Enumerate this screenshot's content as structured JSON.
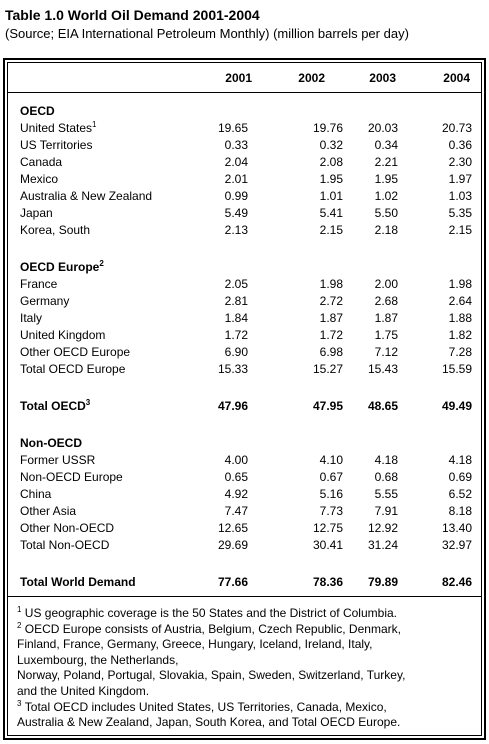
{
  "header": {
    "title": "Table 1.0 World Oil Demand 2001-2004",
    "subtitle": "(Source; EIA International Petroleum Monthly) (million barrels per day)"
  },
  "table": {
    "columns": [
      "2001",
      "2002",
      "2003",
      "2004"
    ],
    "groups": [
      {
        "heading": "OECD",
        "rows": [
          {
            "label": "United States",
            "note": "1",
            "values": [
              "19.65",
              "19.76",
              "20.03",
              "20.73"
            ]
          },
          {
            "label": "US Territories",
            "values": [
              "0.33",
              "0.32",
              "0.34",
              "0.36"
            ]
          },
          {
            "label": "Canada",
            "values": [
              "2.04",
              "2.08",
              "2.21",
              "2.30"
            ]
          },
          {
            "label": "Mexico",
            "values": [
              "2.01",
              "1.95",
              "1.95",
              "1.97"
            ]
          },
          {
            "label": "Australia & New Zealand",
            "values": [
              "0.99",
              "1.01",
              "1.02",
              "1.03"
            ]
          },
          {
            "label": "Japan",
            "values": [
              "5.49",
              "5.41",
              "5.50",
              "5.35"
            ]
          },
          {
            "label": "Korea, South",
            "values": [
              "2.13",
              "2.15",
              "2.18",
              "2.15"
            ]
          }
        ]
      },
      {
        "heading": "OECD Europe",
        "note": "2",
        "rows": [
          {
            "label": "France",
            "values": [
              "2.05",
              "1.98",
              "2.00",
              "1.98"
            ]
          },
          {
            "label": "Germany",
            "values": [
              "2.81",
              "2.72",
              "2.68",
              "2.64"
            ]
          },
          {
            "label": "Italy",
            "values": [
              "1.84",
              "1.87",
              "1.87",
              "1.88"
            ]
          },
          {
            "label": "United Kingdom",
            "values": [
              "1.72",
              "1.72",
              "1.75",
              "1.82"
            ]
          },
          {
            "label": "Other OECD Europe",
            "values": [
              "6.90",
              "6.98",
              "7.12",
              "7.28"
            ]
          },
          {
            "label": "Total OECD Europe",
            "values": [
              "15.33",
              "15.27",
              "15.43",
              "15.59"
            ]
          }
        ]
      },
      {
        "total": {
          "label": "Total OECD",
          "note": "3",
          "values": [
            "47.96",
            "47.95",
            "48.65",
            "49.49"
          ]
        }
      },
      {
        "heading": "Non-OECD",
        "rows": [
          {
            "label": "Former USSR",
            "values": [
              "4.00",
              "4.10",
              "4.18",
              "4.18"
            ]
          },
          {
            "label": "Non-OECD Europe",
            "values": [
              "0.65",
              "0.67",
              "0.68",
              "0.69"
            ]
          },
          {
            "label": "China",
            "values": [
              "4.92",
              "5.16",
              "5.55",
              "6.52"
            ]
          },
          {
            "label": "Other Asia",
            "values": [
              "7.47",
              "7.73",
              "7.91",
              "8.18"
            ]
          },
          {
            "label": "Other Non-OECD",
            "values": [
              "12.65",
              "12.75",
              "12.92",
              "13.40"
            ]
          },
          {
            "label": "Total Non-OECD",
            "values": [
              "29.69",
              "30.41",
              "31.24",
              "32.97"
            ]
          }
        ]
      },
      {
        "total": {
          "label": "Total World Demand",
          "values": [
            "77.66",
            "78.36",
            "79.89",
            "82.46"
          ]
        }
      }
    ]
  },
  "footnotes": [
    {
      "mark": "1",
      "lines": [
        "US geographic coverage is the 50 States and the District of Columbia."
      ]
    },
    {
      "mark": "2",
      "lines": [
        "OECD Europe consists of Austria, Belgium, Czech Republic, Denmark,",
        "Finland, France, Germany, Greece, Hungary, Iceland, Ireland, Italy,",
        "Luxembourg, the Netherlands,",
        "Norway, Poland, Portugal, Slovakia, Spain, Sweden, Switzerland, Turkey,",
        "and the United Kingdom."
      ]
    },
    {
      "mark": "3",
      "lines": [
        "Total OECD includes United States, US Territories, Canada, Mexico,",
        "Australia & New Zealand, Japan, South Korea, and Total OECD Europe."
      ]
    }
  ]
}
